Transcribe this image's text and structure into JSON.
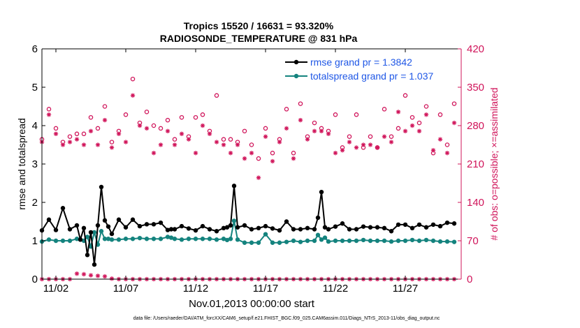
{
  "chart_data": {
    "type": "line",
    "title_lines": [
      "Tropics 15520 / 16631 = 93.320%",
      "RADIOSONDE_TEMPERATURE @ 831 hPa"
    ],
    "xlabel": "Nov.01,2013 00:00:00 start",
    "ylabel_left": "rmse and totalspread",
    "ylabel_right": "# of obs: o=possible; ×=assimilated",
    "xlim": [
      1,
      31
    ],
    "ylim_left": [
      0,
      6
    ],
    "ylim_right": [
      0,
      420
    ],
    "x_ticks": [
      2,
      7,
      12,
      17,
      22,
      27
    ],
    "x_tick_labels": [
      "11/02",
      "11/07",
      "11/12",
      "11/17",
      "11/22",
      "11/27"
    ],
    "y_ticks_left": [
      "0",
      "1",
      "2",
      "3",
      "4",
      "5",
      "6"
    ],
    "y_ticks_right": [
      "0",
      "70",
      "140",
      "210",
      "280",
      "350",
      "420"
    ],
    "grid": false,
    "legend_position": "top-right",
    "footer": "data file: /Users/raeder/DAI/ATM_forcXX/CAM6_setup/f.e21.FHIST_BGC.f09_025.CAM6assim.011/Diags_NTrS_2013-11/obs_diag_output.nc",
    "colors": {
      "rmse": "#000000",
      "spread": "#14837e",
      "obs": "#d0145a"
    },
    "series": [
      {
        "name": "rmse grand pr = 1.3842",
        "axis": "left",
        "x": [
          1,
          1.5,
          2,
          2.5,
          3,
          3.5,
          3.75,
          4,
          4.25,
          4.5,
          4.75,
          5,
          5.25,
          5.5,
          5.75,
          6,
          6.5,
          7,
          7.5,
          8,
          8.5,
          9,
          9.5,
          10,
          10.25,
          10.5,
          11,
          11.5,
          12,
          12.5,
          13,
          13.5,
          14,
          14.25,
          14.5,
          14.75,
          15,
          15.5,
          16,
          16.5,
          17,
          17.5,
          18,
          18.5,
          19,
          19.5,
          20,
          20.5,
          20.75,
          21,
          21.25,
          21.5,
          22,
          22.5,
          23,
          23.5,
          24,
          24.5,
          25,
          25.5,
          26,
          26.5,
          27,
          27.5,
          28,
          28.5,
          29,
          29.5,
          30,
          30.5
        ],
        "values": [
          1.27,
          1.55,
          1.28,
          1.85,
          1.3,
          1.4,
          1.03,
          1.33,
          0.63,
          1.22,
          0.38,
          1.4,
          2.4,
          1.53,
          1.37,
          1.18,
          1.55,
          1.35,
          1.55,
          1.38,
          1.43,
          1.43,
          1.47,
          1.28,
          1.3,
          1.3,
          1.38,
          1.32,
          1.27,
          1.38,
          1.3,
          1.25,
          1.33,
          1.35,
          1.4,
          2.43,
          1.35,
          1.4,
          1.3,
          1.33,
          1.38,
          1.32,
          1.27,
          1.5,
          1.3,
          1.3,
          1.33,
          1.3,
          1.6,
          2.27,
          1.35,
          1.3,
          1.37,
          1.45,
          1.3,
          1.3,
          1.37,
          1.35,
          1.35,
          1.33,
          1.25,
          1.42,
          1.42,
          1.33,
          1.42,
          1.35,
          1.42,
          1.38,
          1.47,
          1.45
        ]
      },
      {
        "name": "totalspread grand pr = 1.037",
        "axis": "left",
        "x": [
          1,
          1.5,
          2,
          2.5,
          3,
          3.5,
          3.75,
          4,
          4.25,
          4.5,
          4.75,
          5,
          5.25,
          5.5,
          5.75,
          6,
          6.5,
          7,
          7.5,
          8,
          8.5,
          9,
          9.5,
          10,
          10.25,
          10.5,
          11,
          11.5,
          12,
          12.5,
          13,
          13.5,
          14,
          14.25,
          14.5,
          14.75,
          15,
          15.5,
          16,
          16.5,
          17,
          17.5,
          18,
          18.5,
          19,
          19.5,
          20,
          20.5,
          20.75,
          21,
          21.25,
          21.5,
          22,
          22.5,
          23,
          23.5,
          24,
          24.5,
          25,
          25.5,
          26,
          26.5,
          27,
          27.5,
          28,
          28.5,
          29,
          29.5,
          30,
          30.5
        ],
        "values": [
          0.98,
          1.03,
          1.0,
          1.0,
          1.0,
          1.05,
          1.03,
          1.0,
          1.1,
          0.85,
          1.22,
          0.9,
          1.25,
          1.05,
          1.05,
          1.03,
          1.03,
          1.05,
          1.05,
          1.07,
          1.05,
          1.05,
          1.05,
          1.1,
          1.08,
          1.05,
          1.03,
          1.05,
          1.05,
          1.05,
          1.05,
          1.03,
          1.05,
          1.02,
          1.05,
          1.52,
          1.03,
          0.95,
          0.95,
          0.95,
          1.17,
          0.95,
          0.95,
          0.97,
          1.0,
          0.97,
          1.0,
          1.0,
          1.15,
          1.03,
          1.08,
          0.98,
          1.0,
          1.0,
          1.0,
          1.0,
          1.02,
          1.0,
          1.0,
          1.0,
          0.98,
          1.0,
          1.0,
          1.02,
          1.0,
          1.02,
          1.0,
          0.98,
          0.98,
          0.97
        ]
      },
      {
        "name": "possible",
        "axis": "right",
        "marker": "o",
        "x": [
          1,
          1.5,
          2,
          2.5,
          3,
          3.5,
          4,
          4.5,
          5,
          5.5,
          6,
          6.5,
          7,
          7.5,
          8,
          8.5,
          9,
          9.5,
          10,
          10.5,
          11,
          11.5,
          12,
          12.5,
          13,
          13.5,
          14,
          14.5,
          15,
          15.5,
          16,
          16.5,
          17,
          17.5,
          18,
          18.5,
          19,
          19.5,
          20,
          20.5,
          21,
          21.5,
          22,
          22.5,
          23,
          23.5,
          24,
          24.5,
          25,
          25.5,
          26,
          26.5,
          27,
          27.5,
          28,
          28.5,
          29,
          29.5,
          30,
          30.5
        ],
        "values": [
          255,
          310,
          275,
          250,
          260,
          265,
          265,
          295,
          275,
          315,
          250,
          270,
          300,
          365,
          285,
          305,
          280,
          275,
          290,
          255,
          295,
          260,
          295,
          300,
          270,
          335,
          255,
          255,
          250,
          270,
          245,
          220,
          275,
          230,
          255,
          310,
          230,
          320,
          260,
          285,
          275,
          270,
          300,
          240,
          260,
          300,
          240,
          260,
          240,
          310,
          260,
          275,
          335,
          295,
          285,
          315,
          230,
          300,
          245,
          320
        ]
      },
      {
        "name": "assimilated",
        "axis": "right",
        "marker": "x",
        "x": [
          1,
          1.5,
          2,
          2.5,
          3,
          3.5,
          4,
          4.5,
          5,
          5.5,
          6,
          6.5,
          7,
          7.5,
          8,
          8.5,
          9,
          9.5,
          10,
          10.5,
          11,
          11.5,
          12,
          12.5,
          13,
          13.5,
          14,
          14.5,
          15,
          15.5,
          16,
          16.5,
          17,
          17.5,
          18,
          18.5,
          19,
          19.5,
          20,
          20.5,
          21,
          21.5,
          22,
          22.5,
          23,
          23.5,
          24,
          24.5,
          25,
          25.5,
          26,
          26.5,
          27,
          27.5,
          28,
          28.5,
          29,
          29.5,
          30,
          30.5
        ],
        "values": [
          250,
          300,
          265,
          245,
          250,
          255,
          245,
          270,
          245,
          290,
          240,
          265,
          250,
          335,
          280,
          275,
          230,
          245,
          270,
          245,
          265,
          255,
          230,
          280,
          265,
          250,
          245,
          230,
          245,
          220,
          230,
          185,
          260,
          215,
          250,
          275,
          220,
          290,
          255,
          270,
          270,
          265,
          230,
          235,
          250,
          240,
          245,
          245,
          240,
          260,
          250,
          305,
          270,
          280,
          270,
          300,
          235,
          255,
          230,
          285
        ]
      }
    ],
    "near_zero_counts": {
      "marker": "x",
      "axis": "right",
      "x": [
        1,
        1.5,
        2,
        2.5,
        3,
        3.5,
        4,
        4.5,
        5,
        5.5,
        6,
        6.5,
        7,
        7.5,
        8,
        8.5,
        9,
        9.5,
        10,
        10.5,
        11,
        11.5,
        12,
        12.5,
        13,
        13.5,
        14,
        14.5,
        15,
        15.5,
        16,
        16.5,
        17,
        17.5,
        18,
        18.5,
        19,
        19.5,
        20,
        20.5,
        21,
        21.5,
        22,
        22.5,
        23,
        23.5,
        24,
        24.5,
        25,
        25.5,
        26,
        26.5,
        27,
        27.5,
        28,
        28.5,
        29,
        29.5,
        30,
        30.5
      ],
      "values": [
        0,
        0,
        0,
        0,
        0,
        10,
        9,
        7,
        6,
        5,
        1,
        0,
        0,
        0,
        0,
        0,
        0,
        0,
        0,
        0,
        0,
        0,
        0,
        0,
        0,
        0,
        0,
        0,
        0,
        0,
        0,
        0,
        0,
        0,
        0,
        0,
        0,
        0,
        0,
        0,
        0,
        0,
        0,
        0,
        0,
        0,
        0,
        0,
        0,
        0,
        0,
        0,
        0,
        0,
        0,
        0,
        0,
        0,
        0,
        0
      ]
    }
  }
}
